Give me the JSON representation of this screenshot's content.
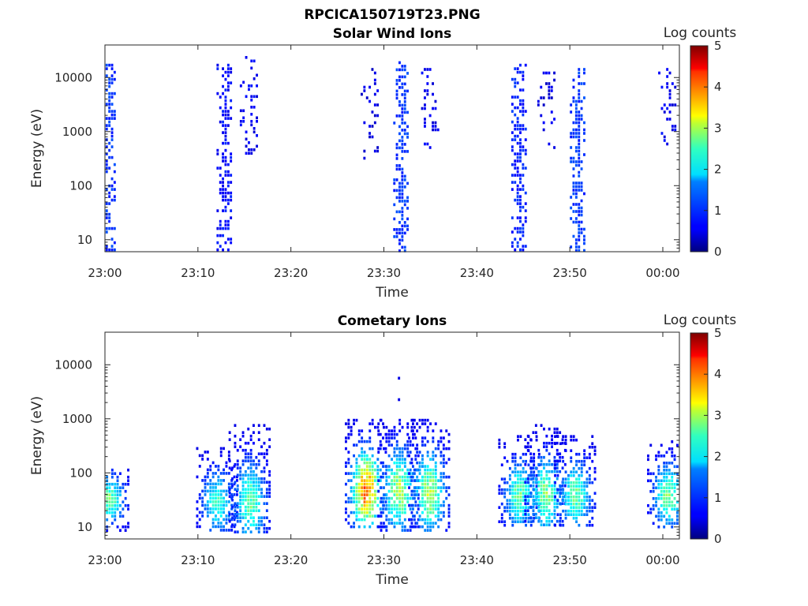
{
  "figure_title": "RPCICA150719T23.PNG",
  "chart_data": [
    {
      "type": "heatmap",
      "title": "Solar Wind Ions",
      "xlabel": "Time",
      "ylabel": "Energy (eV)",
      "x_range": [
        "23:00",
        "00:02"
      ],
      "x_ticks": [
        "23:00",
        "23:10",
        "23:20",
        "23:30",
        "23:40",
        "23:50",
        "00:00"
      ],
      "y_scale": "log",
      "y_range": [
        6,
        40000
      ],
      "y_ticks": [
        "10",
        "100",
        "1000",
        "10000"
      ],
      "colorbar": {
        "label": "Log counts",
        "range": [
          0,
          5
        ],
        "ticks": [
          "0",
          "1",
          "2",
          "3",
          "4",
          "5"
        ],
        "colormap": "jet"
      },
      "bursts": [
        {
          "time_min": 0.3,
          "e_lo": 6,
          "e_hi": 18000,
          "level": 0.7,
          "density": 0.65
        },
        {
          "time_min": 12.8,
          "e_lo": 6,
          "e_hi": 18000,
          "level": 0.5,
          "density": 0.6
        },
        {
          "time_min": 15.5,
          "e_lo": 400,
          "e_hi": 25000,
          "level": 0.4,
          "density": 0.3
        },
        {
          "time_min": 28.5,
          "e_lo": 300,
          "e_hi": 15000,
          "level": 0.3,
          "density": 0.2
        },
        {
          "time_min": 31.8,
          "e_lo": 6,
          "e_hi": 20000,
          "level": 0.7,
          "density": 0.65
        },
        {
          "time_min": 35.0,
          "e_lo": 500,
          "e_hi": 15000,
          "level": 0.4,
          "density": 0.3
        },
        {
          "time_min": 44.5,
          "e_lo": 6,
          "e_hi": 18000,
          "level": 0.6,
          "density": 0.6
        },
        {
          "time_min": 47.5,
          "e_lo": 500,
          "e_hi": 15000,
          "level": 0.3,
          "density": 0.25
        },
        {
          "time_min": 50.8,
          "e_lo": 6,
          "e_hi": 15000,
          "level": 0.7,
          "density": 0.6
        },
        {
          "time_min": 60.5,
          "e_lo": 500,
          "e_hi": 15000,
          "level": 0.4,
          "density": 0.3
        }
      ]
    },
    {
      "type": "heatmap",
      "title": "Cometary Ions",
      "xlabel": "Time",
      "ylabel": "Energy (eV)",
      "x_range": [
        "23:00",
        "00:02"
      ],
      "x_ticks": [
        "23:00",
        "23:10",
        "23:20",
        "23:30",
        "23:40",
        "23:50",
        "00:00"
      ],
      "y_scale": "log",
      "y_range": [
        6,
        40000
      ],
      "y_ticks": [
        "10",
        "100",
        "1000",
        "10000"
      ],
      "colorbar": {
        "label": "Log counts",
        "range": [
          0,
          5
        ],
        "ticks": [
          "0",
          "1",
          "2",
          "3",
          "4",
          "5"
        ],
        "colormap": "jet"
      },
      "bursts": [
        {
          "time_min": 0.3,
          "e_lo": 8,
          "e_hi": 120,
          "peak_energy": 35,
          "peak_level": 2.6
        },
        {
          "time_min": 12.0,
          "e_lo": 8,
          "e_hi": 300,
          "peak_energy": 30,
          "peak_level": 2.2
        },
        {
          "time_min": 15.5,
          "e_lo": 8,
          "e_hi": 800,
          "peak_energy": 30,
          "peak_level": 2.5
        },
        {
          "time_min": 28.0,
          "e_lo": 10,
          "e_hi": 1000,
          "peak_energy": 50,
          "peak_level": 4.0
        },
        {
          "time_min": 31.5,
          "e_lo": 8,
          "e_hi": 1000,
          "peak_energy": 50,
          "peak_level": 2.9
        },
        {
          "time_min": 34.8,
          "e_lo": 8,
          "e_hi": 1000,
          "peak_energy": 45,
          "peak_level": 2.9
        },
        {
          "time_min": 44.5,
          "e_lo": 10,
          "e_hi": 500,
          "peak_energy": 40,
          "peak_level": 2.5
        },
        {
          "time_min": 47.3,
          "e_lo": 10,
          "e_hi": 800,
          "peak_energy": 40,
          "peak_level": 2.7
        },
        {
          "time_min": 50.5,
          "e_lo": 10,
          "e_hi": 500,
          "peak_energy": 40,
          "peak_level": 2.5
        },
        {
          "time_min": 60.5,
          "e_lo": 10,
          "e_hi": 400,
          "peak_energy": 40,
          "peak_level": 2.6
        }
      ],
      "sparse_points": [
        {
          "time_min": 31.5,
          "energy": 6000
        },
        {
          "time_min": 31.5,
          "energy": 2400
        }
      ]
    }
  ]
}
